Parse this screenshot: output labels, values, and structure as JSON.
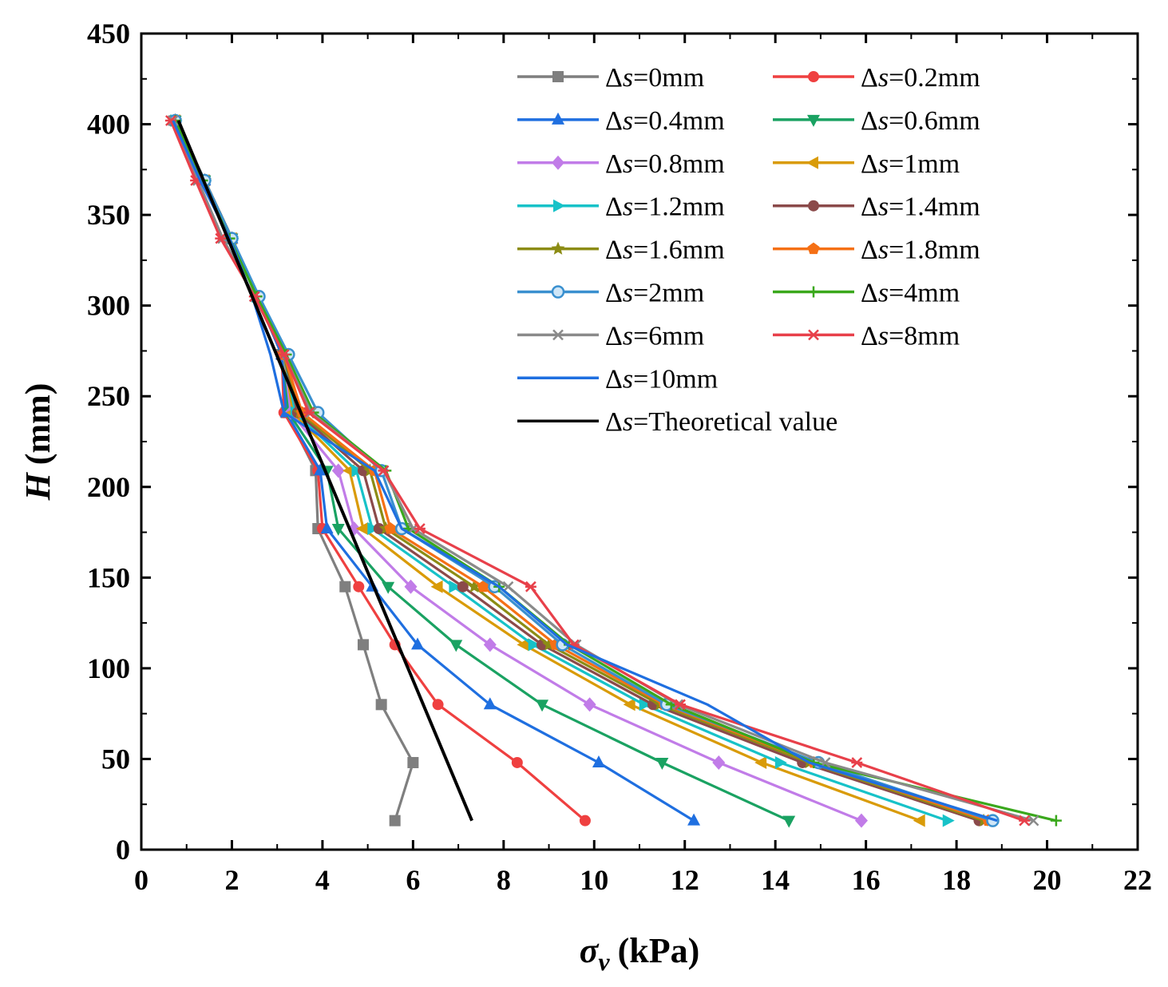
{
  "chart_data": {
    "type": "line",
    "xlabel": {
      "symbol": "σ",
      "subscript": "v",
      "unit": "(kPa)"
    },
    "ylabel": {
      "symbol": "H",
      "unit": "(mm)"
    },
    "xlim": [
      0,
      22
    ],
    "ylim": [
      0,
      450
    ],
    "xticks": [
      0,
      2,
      4,
      6,
      8,
      10,
      12,
      14,
      16,
      18,
      20,
      22
    ],
    "yticks": [
      0,
      50,
      100,
      150,
      200,
      250,
      300,
      350,
      400,
      450
    ],
    "grid": false,
    "legend_position": "top-right",
    "legend_prefix": "Δ",
    "legend_var": "s",
    "H": [
      402,
      369,
      337,
      305,
      273,
      241,
      209,
      177,
      145,
      113,
      80,
      48,
      16
    ],
    "series": [
      {
        "name": "=0mm",
        "color": "#7f7f7f",
        "marker": "square",
        "values": [
          0.75,
          1.4,
          2.0,
          2.55,
          3.1,
          3.2,
          3.85,
          3.9,
          4.5,
          4.9,
          5.3,
          6.0,
          5.6
        ]
      },
      {
        "name": "=0.2mm",
        "color": "#ef4040",
        "marker": "circle",
        "values": [
          0.75,
          1.4,
          2.0,
          2.55,
          3.1,
          3.15,
          3.9,
          4.0,
          4.8,
          5.6,
          6.55,
          8.3,
          9.8
        ]
      },
      {
        "name": "=0.4mm",
        "color": "#1f6fe0",
        "marker": "triangle-up",
        "values": [
          0.75,
          1.4,
          2.0,
          2.55,
          3.1,
          3.2,
          3.95,
          4.1,
          5.1,
          6.1,
          7.7,
          10.1,
          12.2
        ]
      },
      {
        "name": "=0.6mm",
        "color": "#1aa262",
        "marker": "triangle-down",
        "values": [
          0.75,
          1.4,
          2.0,
          2.55,
          3.15,
          3.25,
          4.1,
          4.35,
          5.45,
          6.95,
          8.85,
          11.5,
          14.3
        ]
      },
      {
        "name": "=0.8mm",
        "color": "#c17ce8",
        "marker": "diamond",
        "values": [
          0.75,
          1.4,
          2.0,
          2.55,
          3.15,
          3.3,
          4.35,
          4.7,
          5.95,
          7.7,
          9.9,
          12.75,
          15.9
        ]
      },
      {
        "name": "=1mm",
        "color": "#d99b08",
        "marker": "triangle-left",
        "values": [
          0.75,
          1.4,
          2.0,
          2.55,
          3.15,
          3.35,
          4.6,
          4.9,
          6.55,
          8.45,
          10.8,
          13.7,
          17.2
        ]
      },
      {
        "name": "=1.2mm",
        "color": "#17c2c8",
        "marker": "triangle-right",
        "values": [
          0.75,
          1.4,
          2.0,
          2.55,
          3.15,
          3.4,
          4.75,
          5.1,
          6.9,
          8.65,
          11.1,
          14.1,
          17.8
        ]
      },
      {
        "name": "=1.4mm",
        "color": "#8b4a4a",
        "marker": "circle",
        "values": [
          0.75,
          1.4,
          2.0,
          2.55,
          3.15,
          3.45,
          4.9,
          5.25,
          7.1,
          8.85,
          11.3,
          14.6,
          18.5
        ]
      },
      {
        "name": "=1.6mm",
        "color": "#8c8c14",
        "marker": "star",
        "values": [
          0.75,
          1.4,
          2.0,
          2.55,
          3.15,
          3.5,
          5.05,
          5.4,
          7.35,
          9.0,
          11.45,
          14.75,
          18.6
        ]
      },
      {
        "name": "=1.8mm",
        "color": "#f57015",
        "marker": "pentagon",
        "values": [
          0.75,
          1.4,
          2.0,
          2.55,
          3.15,
          3.55,
          5.15,
          5.5,
          7.55,
          9.15,
          11.55,
          14.85,
          18.7
        ]
      },
      {
        "name": "=2mm",
        "color": "#3a90cf",
        "marker": "circle-open",
        "values": [
          0.75,
          1.4,
          2.0,
          2.6,
          3.25,
          3.9,
          5.3,
          5.75,
          7.8,
          9.3,
          11.6,
          14.95,
          18.8
        ]
      },
      {
        "name": "=4mm",
        "color": "#3aa81c",
        "marker": "plus",
        "values": [
          0.75,
          1.35,
          1.95,
          2.55,
          3.2,
          3.8,
          5.4,
          5.9,
          7.9,
          9.45,
          11.7,
          14.85,
          20.2
        ]
      },
      {
        "name": "=6mm",
        "color": "#8a8a8a",
        "marker": "x",
        "values": [
          0.7,
          1.25,
          1.8,
          2.5,
          3.15,
          3.75,
          5.35,
          6.0,
          8.1,
          9.6,
          11.85,
          15.1,
          19.7
        ]
      },
      {
        "name": "=8mm",
        "color": "#e8404a",
        "marker": "asterisk",
        "values": [
          0.65,
          1.2,
          1.75,
          2.5,
          3.15,
          3.7,
          5.35,
          6.15,
          8.6,
          9.55,
          11.9,
          15.8,
          19.5
        ]
      },
      {
        "name": "=10mm",
        "color": "#1f6fe0",
        "marker": "none",
        "values": [
          0.7,
          1.3,
          1.95,
          2.45,
          2.85,
          3.15,
          5.15,
          5.75,
          7.9,
          9.4,
          12.5,
          14.75,
          18.9
        ]
      },
      {
        "name": "=Theoretical value",
        "color": "#000000",
        "marker": "none",
        "points": [
          [
            0.82,
            402
          ],
          [
            7.3,
            16
          ]
        ]
      }
    ]
  }
}
